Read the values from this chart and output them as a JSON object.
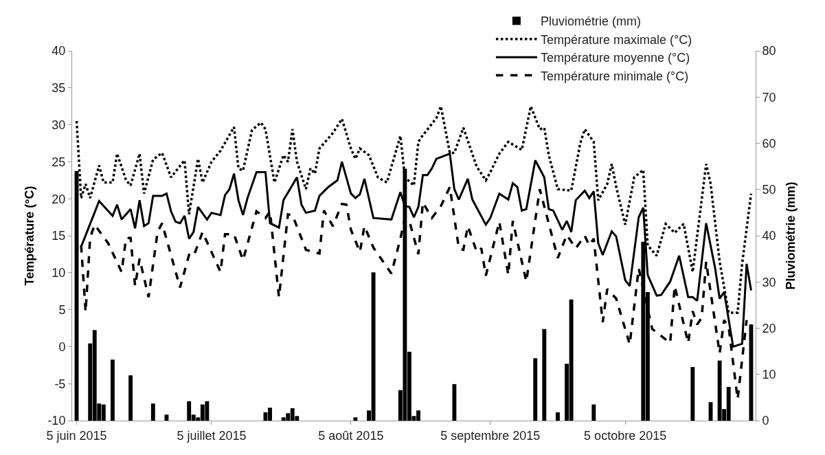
{
  "chart_data": {
    "type": "line",
    "ylabel": "Température (°C)",
    "y2label": "Pluviométrie (mm)",
    "xlim": [
      "2015-06-04",
      "2015-11-03"
    ],
    "xticks": [
      {
        "value": "2015-06-05",
        "label": "5 juin 2015"
      },
      {
        "value": "2015-07-05",
        "label": "5 juillet 2015"
      },
      {
        "value": "2015-08-05",
        "label": "5 août 2015"
      },
      {
        "value": "2015-09-05",
        "label": "5 septembre 2015"
      },
      {
        "value": "2015-10-05",
        "label": "5 octobre 2015"
      }
    ],
    "ylim": [
      -10,
      40
    ],
    "yticks": [
      -10,
      -5,
      0,
      5,
      10,
      15,
      20,
      25,
      30,
      35,
      40
    ],
    "y2lim": [
      0,
      80
    ],
    "y2ticks": [
      0,
      10,
      20,
      30,
      40,
      50,
      60,
      70,
      80
    ],
    "legend": "top right",
    "series": [
      {
        "name": "Pluviométrie (mm)",
        "type": "bar",
        "axis": "y2",
        "color": "#000000",
        "x": [
          "2015-06-05",
          "2015-06-08",
          "2015-06-09",
          "2015-06-10",
          "2015-06-11",
          "2015-06-13",
          "2015-06-17",
          "2015-06-22",
          "2015-06-25",
          "2015-06-30",
          "2015-07-01",
          "2015-07-02",
          "2015-07-03",
          "2015-07-04",
          "2015-07-17",
          "2015-07-18",
          "2015-07-21",
          "2015-07-22",
          "2015-07-23",
          "2015-07-24",
          "2015-08-06",
          "2015-08-09",
          "2015-08-10",
          "2015-08-16",
          "2015-08-17",
          "2015-08-18",
          "2015-08-19",
          "2015-08-20",
          "2015-08-28",
          "2015-09-15",
          "2015-09-17",
          "2015-09-20",
          "2015-09-22",
          "2015-09-23",
          "2015-09-28",
          "2015-10-09",
          "2015-10-10",
          "2015-10-20",
          "2015-10-24",
          "2015-10-26",
          "2015-10-27",
          "2015-10-28",
          "2015-11-02"
        ],
        "values": [
          54,
          16.7,
          19.6,
          3.7,
          3.5,
          13.2,
          9.8,
          3.7,
          1.3,
          4.2,
          1.3,
          0.7,
          3.5,
          4.2,
          1.8,
          2.8,
          0.7,
          1.6,
          2.7,
          1.0,
          0.7,
          2.2,
          32.1,
          6.6,
          54.5,
          14.9,
          1.0,
          2.2,
          7.9,
          13.5,
          19.8,
          1.8,
          12.3,
          26.2,
          3.5,
          38.7,
          27.8,
          11.6,
          4.0,
          13.0,
          2.5,
          7.3,
          20.8
        ]
      },
      {
        "name": "Température maximale (°C)",
        "line_style": "dotted",
        "color": "#000000",
        "x": [
          "2015-06-05",
          "2015-06-06",
          "2015-06-07",
          "2015-06-08",
          "2015-06-10",
          "2015-06-11",
          "2015-06-13",
          "2015-06-14",
          "2015-06-16",
          "2015-06-17",
          "2015-06-19",
          "2015-06-20",
          "2015-06-22",
          "2015-06-24",
          "2015-06-26",
          "2015-06-29",
          "2015-06-30",
          "2015-07-02",
          "2015-07-03",
          "2015-07-05",
          "2015-07-07",
          "2015-07-10",
          "2015-07-11",
          "2015-07-12",
          "2015-07-14",
          "2015-07-16",
          "2015-07-17",
          "2015-07-19",
          "2015-07-21",
          "2015-07-22",
          "2015-07-23",
          "2015-07-24",
          "2015-07-26",
          "2015-07-27",
          "2015-07-28",
          "2015-07-29",
          "2015-08-01",
          "2015-08-03",
          "2015-08-05",
          "2015-08-06",
          "2015-08-07",
          "2015-08-09",
          "2015-08-11",
          "2015-08-13",
          "2015-08-16",
          "2015-08-17",
          "2015-08-19",
          "2015-08-20",
          "2015-08-21",
          "2015-08-24",
          "2015-08-25",
          "2015-08-27",
          "2015-08-28",
          "2015-08-30",
          "2015-09-02",
          "2015-09-04",
          "2015-09-05",
          "2015-09-07",
          "2015-09-09",
          "2015-09-12",
          "2015-09-14",
          "2015-09-16",
          "2015-09-17",
          "2015-09-18",
          "2015-09-20",
          "2015-09-23",
          "2015-09-25",
          "2015-09-26",
          "2015-09-28",
          "2015-09-29",
          "2015-10-01",
          "2015-10-02",
          "2015-10-03",
          "2015-10-05",
          "2015-10-07",
          "2015-10-09",
          "2015-10-10",
          "2015-10-12",
          "2015-10-14",
          "2015-10-16",
          "2015-10-18",
          "2015-10-20",
          "2015-10-23",
          "2015-10-24",
          "2015-10-26",
          "2015-10-28",
          "2015-10-30",
          "2015-10-31",
          "2015-11-02"
        ],
        "values": [
          30.5,
          20.1,
          22.0,
          20.1,
          24.5,
          22.2,
          22.2,
          26.1,
          22.5,
          21.8,
          26.1,
          20.7,
          25.3,
          26.2,
          22.9,
          25.2,
          17.9,
          25.4,
          22.2,
          25.0,
          26.5,
          29.7,
          24.1,
          23.8,
          29.3,
          30.3,
          29.4,
          22.2,
          25.9,
          25.0,
          29.4,
          25.0,
          21.3,
          24.1,
          23.4,
          26.8,
          28.9,
          30.8,
          26.8,
          25.4,
          26.8,
          25.9,
          22.9,
          22.2,
          28.5,
          22.9,
          21.8,
          27.7,
          28.6,
          30.9,
          32.5,
          26.2,
          26.2,
          29.6,
          24.3,
          22.5,
          23.6,
          26.1,
          27.7,
          26.6,
          32.5,
          29.4,
          29.6,
          25.9,
          21.3,
          21.1,
          27.5,
          29.4,
          27.7,
          19.8,
          22.0,
          24.7,
          21.6,
          16.5,
          22.9,
          23.9,
          13.7,
          12.3,
          16.6,
          15.4,
          16.6,
          10.1,
          24.7,
          22.0,
          11.5,
          4.6,
          4.6,
          11.2,
          20.7
        ]
      },
      {
        "name": "Température moyenne (°C)",
        "line_style": "solid",
        "color": "#000000",
        "x": [
          "2015-06-06",
          "2015-06-10",
          "2015-06-13",
          "2015-06-14",
          "2015-06-15",
          "2015-06-17",
          "2015-06-18",
          "2015-06-19",
          "2015-06-20",
          "2015-06-21",
          "2015-06-22",
          "2015-06-24",
          "2015-06-25",
          "2015-06-26",
          "2015-06-27",
          "2015-06-28",
          "2015-06-29",
          "2015-06-30",
          "2015-07-01",
          "2015-07-02",
          "2015-07-04",
          "2015-07-05",
          "2015-07-07",
          "2015-07-08",
          "2015-07-09",
          "2015-07-10",
          "2015-07-11",
          "2015-07-12",
          "2015-07-13",
          "2015-07-15",
          "2015-07-17",
          "2015-07-18",
          "2015-07-20",
          "2015-07-21",
          "2015-07-24",
          "2015-07-25",
          "2015-07-26",
          "2015-07-28",
          "2015-07-29",
          "2015-07-31",
          "2015-08-02",
          "2015-08-03",
          "2015-08-05",
          "2015-08-06",
          "2015-08-07",
          "2015-08-08",
          "2015-08-10",
          "2015-08-14",
          "2015-08-16",
          "2015-08-17",
          "2015-08-18",
          "2015-08-19",
          "2015-08-20",
          "2015-08-21",
          "2015-08-22",
          "2015-08-23",
          "2015-08-24",
          "2015-08-27",
          "2015-08-28",
          "2015-08-29",
          "2015-08-31",
          "2015-09-01",
          "2015-09-04",
          "2015-09-05",
          "2015-09-07",
          "2015-09-09",
          "2015-09-10",
          "2015-09-11",
          "2015-09-12",
          "2015-09-13",
          "2015-09-15",
          "2015-09-17",
          "2015-09-18",
          "2015-09-19",
          "2015-09-21",
          "2015-09-22",
          "2015-09-23",
          "2015-09-24",
          "2015-09-26",
          "2015-09-27",
          "2015-09-28",
          "2015-09-29",
          "2015-09-30",
          "2015-10-02",
          "2015-10-03",
          "2015-10-05",
          "2015-10-06",
          "2015-10-08",
          "2015-10-09",
          "2015-10-10",
          "2015-10-12",
          "2015-10-13",
          "2015-10-15",
          "2015-10-17",
          "2015-10-19",
          "2015-10-20",
          "2015-10-21",
          "2015-10-23",
          "2015-10-25",
          "2015-10-26",
          "2015-10-27",
          "2015-10-29",
          "2015-10-31",
          "2015-11-01",
          "2015-11-02"
        ],
        "values": [
          13.5,
          19.7,
          17.7,
          19.2,
          17.2,
          18.6,
          16.0,
          19.8,
          16.3,
          16.7,
          20.4,
          20.4,
          20.7,
          18.3,
          16.9,
          16.7,
          17.7,
          14.6,
          15.5,
          18.9,
          17.2,
          18.1,
          17.8,
          20.5,
          21.3,
          23.4,
          19.8,
          17.8,
          20.1,
          23.6,
          23.6,
          16.7,
          16.1,
          19.8,
          22.9,
          19.2,
          18.1,
          18.4,
          20.4,
          21.6,
          22.5,
          25.0,
          20.7,
          20.1,
          20.6,
          22.7,
          17.4,
          17.2,
          20.9,
          19.0,
          18.9,
          17.5,
          18.9,
          23.2,
          23.2,
          24.1,
          25.4,
          26.1,
          21.3,
          19.9,
          22.7,
          19.9,
          16.5,
          17.4,
          20.7,
          19.9,
          22.1,
          21.6,
          18.4,
          18.6,
          25.2,
          22.9,
          18.6,
          18.4,
          15.8,
          17.0,
          15.5,
          19.8,
          21.1,
          20.1,
          21.0,
          14.0,
          12.4,
          15.6,
          14.9,
          9.0,
          8.2,
          17.5,
          18.8,
          9.7,
          6.9,
          7.0,
          8.8,
          12.3,
          6.7,
          6.7,
          6.2,
          16.7,
          10.6,
          6.5,
          7.4,
          0.0,
          0.4,
          11.2,
          7.6
        ]
      },
      {
        "name": "Température minimale (°C)",
        "line_style": "dashed",
        "color": "#000000",
        "x": [
          "2015-06-06",
          "2015-06-07",
          "2015-06-08",
          "2015-06-09",
          "2015-06-12",
          "2015-06-15",
          "2015-06-16",
          "2015-06-17",
          "2015-06-18",
          "2015-06-19",
          "2015-06-21",
          "2015-06-23",
          "2015-06-24",
          "2015-06-28",
          "2015-06-30",
          "2015-07-01",
          "2015-07-03",
          "2015-07-07",
          "2015-07-08",
          "2015-07-10",
          "2015-07-12",
          "2015-07-15",
          "2015-07-17",
          "2015-07-18",
          "2015-07-20",
          "2015-07-22",
          "2015-07-23",
          "2015-07-26",
          "2015-07-29",
          "2015-07-30",
          "2015-08-01",
          "2015-08-03",
          "2015-08-04",
          "2015-08-05",
          "2015-08-07",
          "2015-08-08",
          "2015-08-10",
          "2015-08-14",
          "2015-08-16",
          "2015-08-17",
          "2015-08-18",
          "2015-08-20",
          "2015-08-21",
          "2015-08-23",
          "2015-08-25",
          "2015-08-27",
          "2015-08-29",
          "2015-08-30",
          "2015-08-31",
          "2015-09-02",
          "2015-09-03",
          "2015-09-04",
          "2015-09-07",
          "2015-09-09",
          "2015-09-10",
          "2015-09-13",
          "2015-09-16",
          "2015-09-20",
          "2015-09-22",
          "2015-09-24",
          "2015-09-26",
          "2015-09-27",
          "2015-09-28",
          "2015-09-30",
          "2015-10-01",
          "2015-10-03",
          "2015-10-06",
          "2015-10-08",
          "2015-10-11",
          "2015-10-15",
          "2015-10-16",
          "2015-10-19",
          "2015-10-20",
          "2015-10-21",
          "2015-10-22",
          "2015-10-23",
          "2015-10-26",
          "2015-10-27",
          "2015-10-28",
          "2015-10-30",
          "2015-11-01"
        ],
        "values": [
          13.7,
          4.7,
          14.7,
          16.5,
          14.0,
          10.1,
          14.7,
          14.7,
          8.2,
          11.9,
          6.7,
          15.5,
          16.7,
          8.0,
          12.4,
          12.2,
          15.5,
          10.1,
          15.2,
          15.2,
          11.7,
          18.3,
          17.4,
          18.3,
          6.7,
          17.9,
          17.8,
          13.1,
          12.6,
          18.4,
          16.3,
          19.3,
          19.2,
          15.8,
          12.8,
          16.3,
          13.4,
          9.9,
          14.6,
          17.4,
          17.0,
          12.5,
          19.5,
          17.4,
          19.0,
          21.6,
          13.3,
          13.1,
          16.3,
          12.8,
          13.3,
          9.6,
          16.9,
          9.7,
          17.0,
          8.8,
          21.3,
          12.0,
          15.1,
          13.3,
          15.0,
          13.7,
          14.6,
          3.3,
          7.8,
          6.5,
          0.3,
          10.6,
          2.4,
          0.5,
          8.2,
          0.5,
          4.8,
          3.0,
          3.9,
          11.5,
          -0.9,
          3.6,
          2.7,
          -7.1,
          3.6
        ]
      }
    ]
  }
}
